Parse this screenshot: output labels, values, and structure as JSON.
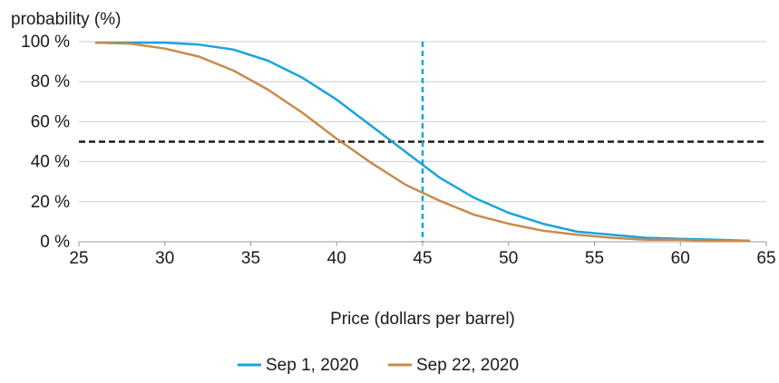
{
  "chart_data": {
    "type": "line",
    "title": "",
    "ylabel": "probability (%)",
    "xlabel": "Price (dollars per barrel)",
    "xlim": [
      25,
      65
    ],
    "ylim": [
      0,
      100
    ],
    "x_ticks": [
      25,
      30,
      35,
      40,
      45,
      50,
      55,
      60,
      65
    ],
    "y_ticks": [
      0,
      20,
      40,
      60,
      80,
      100
    ],
    "y_tick_labels": [
      "0 %",
      "20 %",
      "40 %",
      "60 %",
      "80 %",
      "100 %"
    ],
    "grid": "horizontal",
    "legend_position": "bottom-center",
    "series": [
      {
        "name": "Sep 1, 2020",
        "color": "#1aa3dd",
        "x": [
          26,
          28,
          30,
          32,
          34,
          36,
          38,
          40,
          42,
          44,
          46,
          48,
          50,
          52,
          54,
          56,
          58,
          60,
          62,
          64
        ],
        "y": [
          99.5,
          99.5,
          99.5,
          98.5,
          96,
          90.5,
          82,
          71,
          58,
          45,
          32,
          22,
          14.5,
          9,
          5,
          3.5,
          2,
          1.5,
          1,
          0.5
        ]
      },
      {
        "name": "Sep 22, 2020",
        "color": "#c98a4a",
        "x": [
          26,
          28,
          30,
          32,
          34,
          36,
          38,
          40,
          42,
          44,
          46,
          48,
          50,
          52,
          54,
          56,
          58,
          60,
          62,
          64
        ],
        "y": [
          99.5,
          99,
          96.5,
          92.5,
          85.5,
          76,
          64.5,
          51.5,
          39.5,
          28.5,
          20.5,
          13.5,
          9,
          5.5,
          3.5,
          2,
          1,
          1,
          0.5,
          0.5
        ]
      }
    ],
    "reference_lines": [
      {
        "orientation": "horizontal",
        "value": 50,
        "color": "#1a1a1a",
        "style": "dashed"
      },
      {
        "orientation": "vertical",
        "value": 45,
        "color": "#1aa3dd",
        "style": "dashed"
      }
    ]
  }
}
